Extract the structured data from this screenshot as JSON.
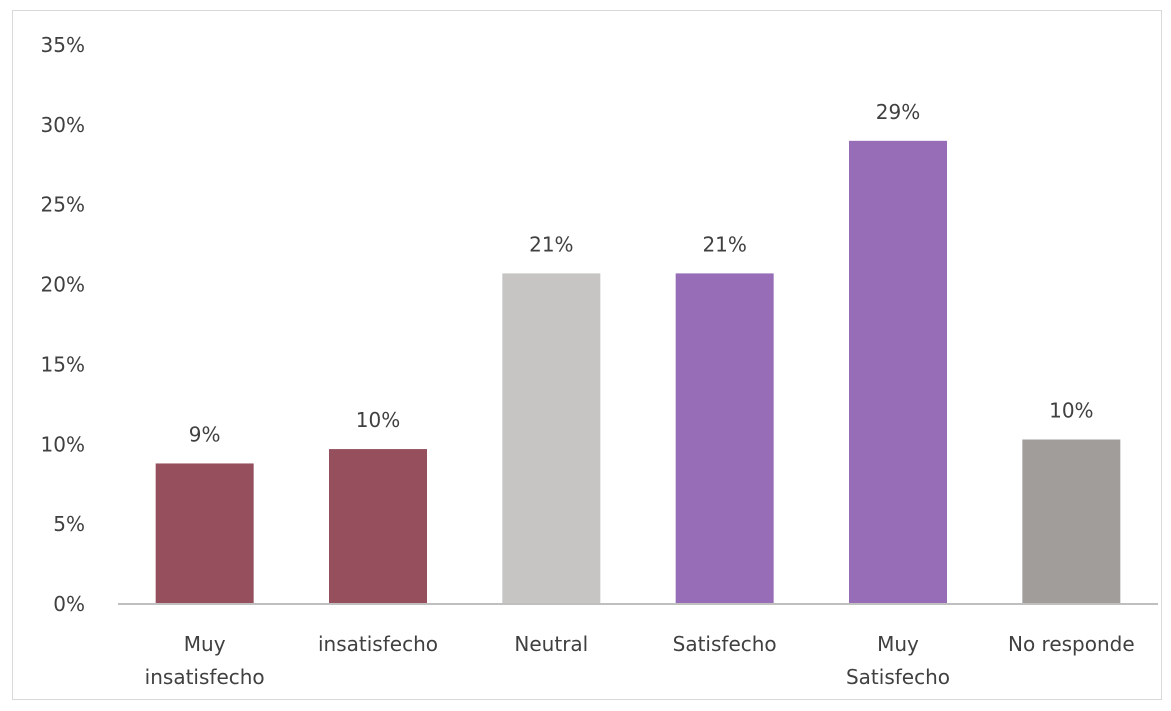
{
  "chart_data": {
    "type": "bar",
    "categories": [
      [
        "Muy",
        "insatisfecho"
      ],
      [
        "insatisfecho"
      ],
      [
        "Neutral"
      ],
      [
        "Satisfecho"
      ],
      [
        "Muy",
        "Satisfecho"
      ],
      [
        "No responde"
      ]
    ],
    "values": [
      0.088,
      0.097,
      0.207,
      0.207,
      0.29,
      0.103
    ],
    "data_labels": [
      "9%",
      "10%",
      "21%",
      "21%",
      "29%",
      "10%"
    ],
    "colors": [
      "#954f5d",
      "#954f5d",
      "#c6c5c4",
      "#986db8",
      "#986db8",
      "#a19d9b"
    ],
    "ylim": [
      0,
      0.35
    ],
    "yticks": [
      0,
      0.05,
      0.1,
      0.15,
      0.2,
      0.25,
      0.3,
      0.35
    ],
    "ytick_labels": [
      "0%",
      "5%",
      "10%",
      "15%",
      "20%",
      "25%",
      "30%",
      "35%"
    ],
    "grid": false,
    "legend": "none"
  }
}
